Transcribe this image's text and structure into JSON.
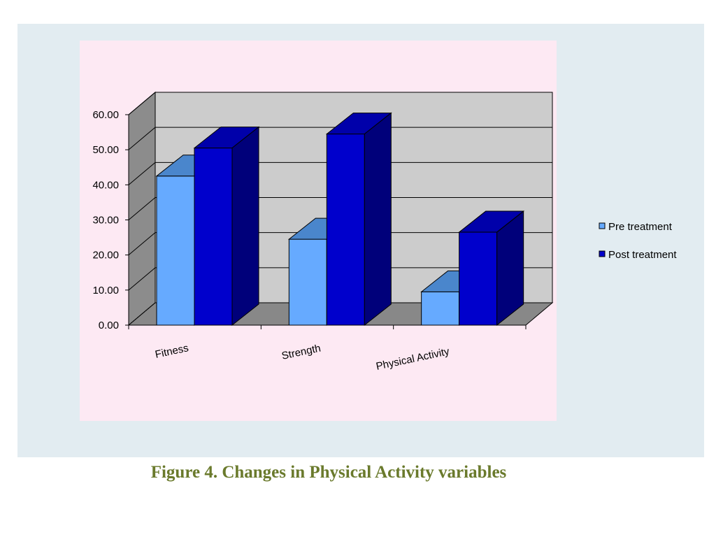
{
  "caption": "Figure 4. Changes in Physical Activity variables",
  "chart_data": {
    "type": "bar",
    "style": "3d-clustered",
    "categories": [
      "Fitness",
      "Strength",
      "Physical Activity"
    ],
    "series": [
      {
        "name": "Pre treatment",
        "values": [
          42.5,
          24.5,
          9.5
        ],
        "color": "#66aaff"
      },
      {
        "name": "Post treatment",
        "values": [
          50.5,
          54.5,
          26.5
        ],
        "color": "#0000cc"
      }
    ],
    "y_ticks": [
      "0.00",
      "10.00",
      "20.00",
      "30.00",
      "40.00",
      "50.00",
      "60.00"
    ],
    "ylim": [
      0,
      60
    ],
    "grid": true,
    "legend_position": "right",
    "wall_color": "#cccccc",
    "floor_color": "#888888"
  }
}
